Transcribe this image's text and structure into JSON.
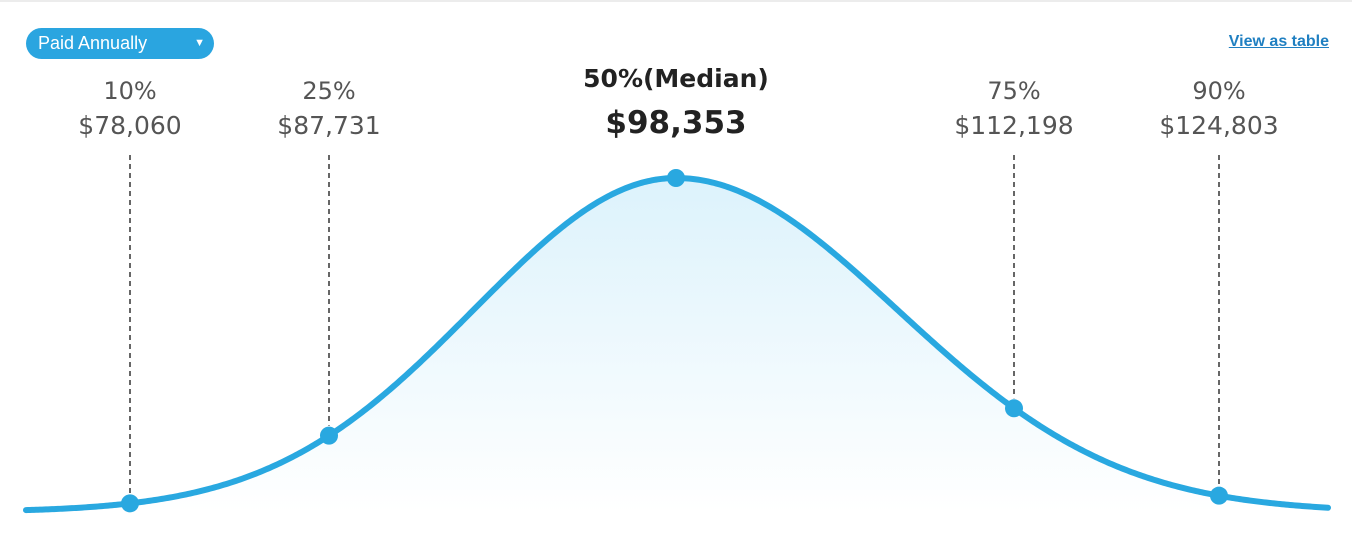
{
  "controls": {
    "pay_period": "Paid Annually",
    "view_table_link": "View as table"
  },
  "chart_data": {
    "type": "area",
    "curve": "bell",
    "line_color": "#29a8e0",
    "fill_color": "#d6f0fb",
    "legend": "none",
    "grid": false,
    "x_unit": "USD",
    "percentiles": [
      {
        "pct": "10%",
        "value": 78060,
        "value_label": "$78,060",
        "median": false
      },
      {
        "pct": "25%",
        "value": 87731,
        "value_label": "$87,731",
        "median": false
      },
      {
        "pct": "50%(Median)",
        "value": 98353,
        "value_label": "$98,353",
        "median": true
      },
      {
        "pct": "75%",
        "value": 112198,
        "value_label": "$112,198",
        "median": false
      },
      {
        "pct": "90%",
        "value": 124803,
        "value_label": "$124,803",
        "median": false
      }
    ]
  }
}
